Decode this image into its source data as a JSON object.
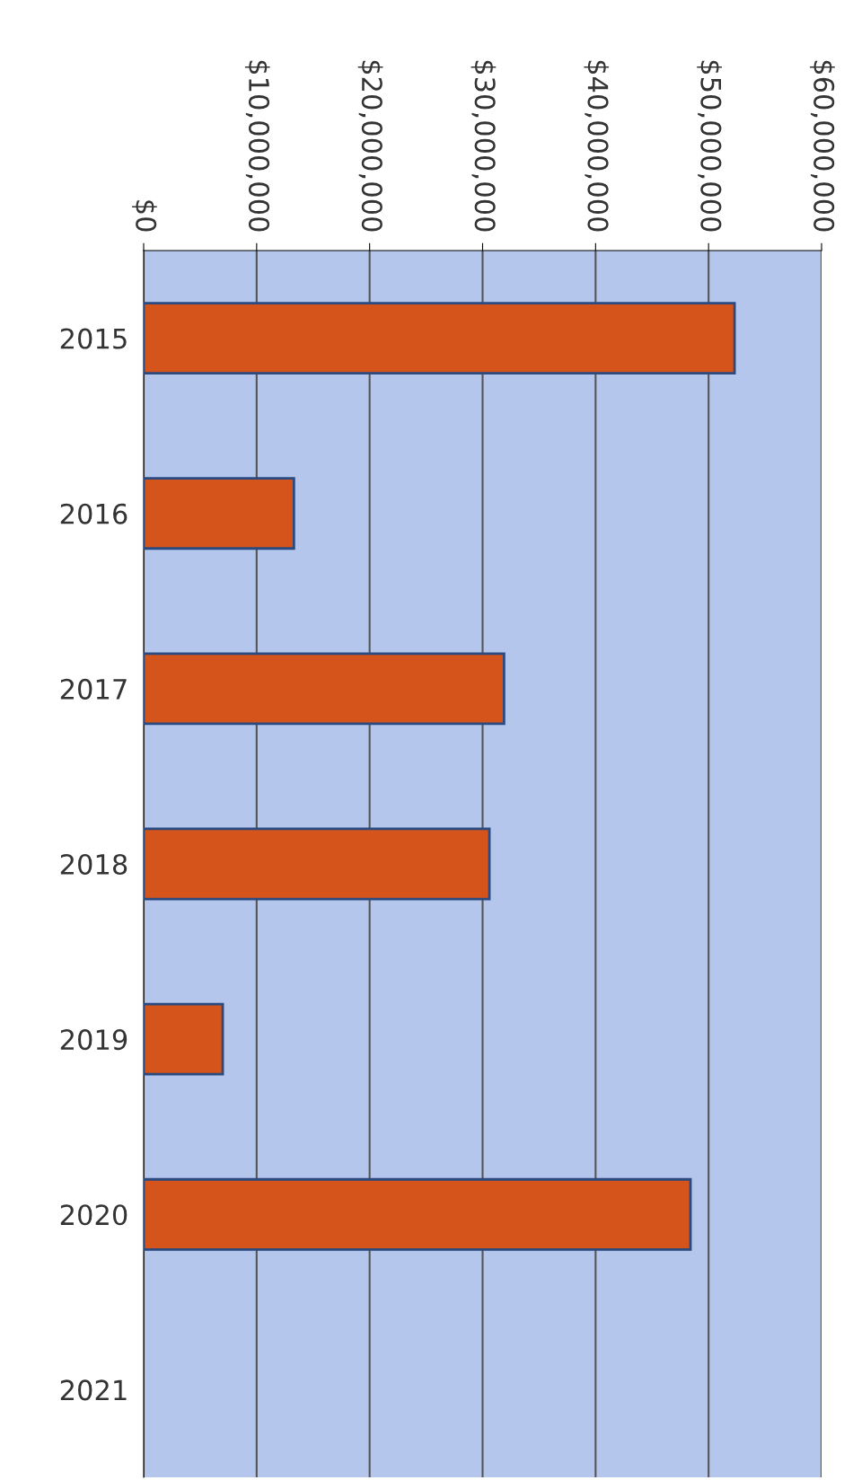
{
  "chart_data": {
    "type": "bar",
    "orientation": "horizontal",
    "categories": [
      "2015",
      "2016",
      "2017",
      "2018",
      "2019",
      "2020",
      "2021"
    ],
    "values": [
      52300000,
      13300000,
      31900000,
      30600000,
      7000000,
      48400000,
      null
    ],
    "color": "#d4541c",
    "xlim": [
      0,
      60000000
    ],
    "xticks": [
      {
        "value": 0,
        "label": "$0"
      },
      {
        "value": 10000000,
        "label": "$10,000,000"
      },
      {
        "value": 20000000,
        "label": "$20,000,000"
      },
      {
        "value": 30000000,
        "label": "$30,000,000"
      },
      {
        "value": 40000000,
        "label": "$40,000,000"
      },
      {
        "value": 50000000,
        "label": "$50,000,000"
      },
      {
        "value": 60000000,
        "label": "$60,000,000"
      }
    ],
    "grid": "x"
  }
}
